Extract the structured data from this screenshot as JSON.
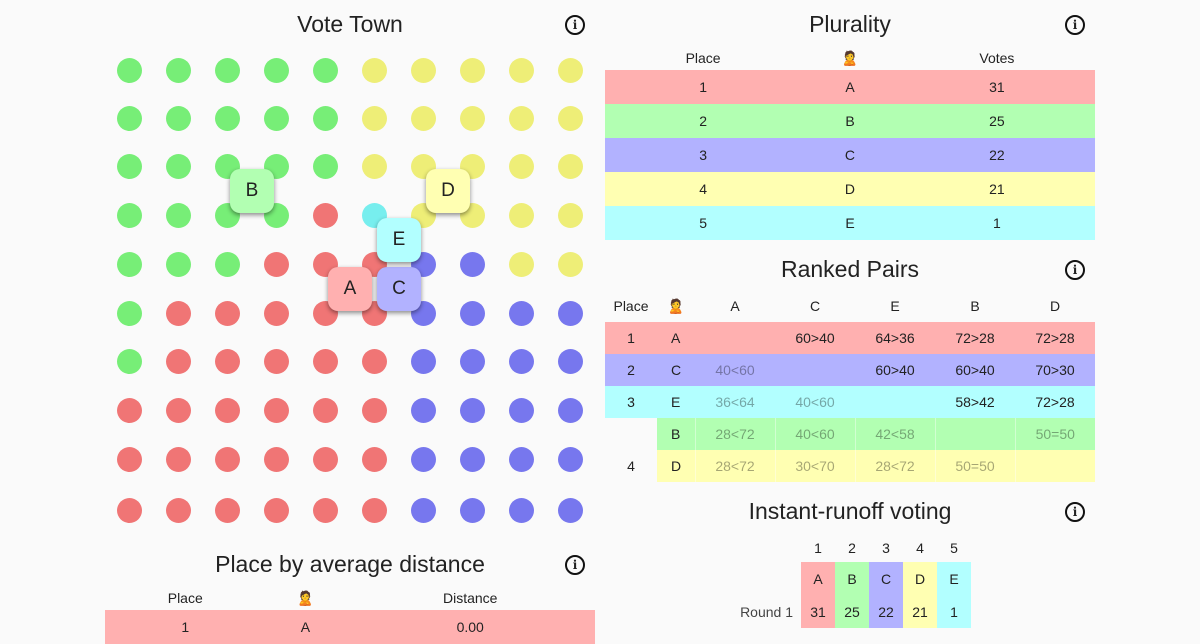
{
  "colors": {
    "A": "#f07575",
    "B": "#77ee77",
    "C": "#7777ee",
    "D": "#eeee77",
    "E": "#77eeee"
  },
  "light": {
    "A": "#ffb0b0",
    "B": "#b2ffb2",
    "C": "#b2b2ff",
    "D": "#ffffb2",
    "E": "#b2ffff"
  },
  "vote_town": {
    "title": "Vote Town",
    "info": "i",
    "voters": [
      "BBBBBDDDDD",
      "BBBBBDDDDD",
      "BBBBBDDDDD",
      "BBBBAEDDDD",
      "BBBAAACCDD",
      "BAAAAACCCC",
      "BAAAAACCCC",
      "AAAAAACCCC",
      "AAAAAACCCC",
      "AAAAAACCCC"
    ],
    "candidates": [
      "A",
      "B",
      "C",
      "D",
      "E"
    ]
  },
  "plurality": {
    "title": "Plurality",
    "info": "i",
    "headers": [
      "Place",
      "🙎",
      "Votes"
    ],
    "rows": [
      {
        "place": "1",
        "cand": "A",
        "votes": "31"
      },
      {
        "place": "2",
        "cand": "B",
        "votes": "25"
      },
      {
        "place": "3",
        "cand": "C",
        "votes": "22"
      },
      {
        "place": "4",
        "cand": "D",
        "votes": "21"
      },
      {
        "place": "5",
        "cand": "E",
        "votes": "1"
      }
    ]
  },
  "ranked_pairs": {
    "title": "Ranked Pairs",
    "info": "i",
    "headers": [
      "Place",
      "🙎",
      "A",
      "C",
      "E",
      "B",
      "D"
    ],
    "rows": [
      {
        "place": "1",
        "cand": "A",
        "cells": [
          "",
          "60>40",
          "64>36",
          "72>28",
          "72>28"
        ]
      },
      {
        "place": "2",
        "cand": "C",
        "cells": [
          "40<60",
          "",
          "60>40",
          "60>40",
          "70>30"
        ]
      },
      {
        "place": "3",
        "cand": "E",
        "cells": [
          "36<64",
          "40<60",
          "",
          "58>42",
          "72>28"
        ]
      },
      {
        "place": "",
        "cand": "B",
        "cells": [
          "28<72",
          "40<60",
          "42<58",
          "",
          "50=50"
        ]
      },
      {
        "place": "4",
        "cand": "D",
        "cells": [
          "28<72",
          "30<70",
          "28<72",
          "50=50",
          ""
        ]
      }
    ]
  },
  "irv": {
    "title": "Instant-runoff voting",
    "info": "i",
    "headers": [
      "1",
      "2",
      "3",
      "4",
      "5"
    ],
    "cands": [
      "A",
      "B",
      "C",
      "D",
      "E"
    ],
    "round_label": "Round 1",
    "votes": [
      "31",
      "25",
      "22",
      "21",
      "1"
    ]
  },
  "avg_distance": {
    "title": "Place by average distance",
    "info": "i",
    "headers": [
      "Place",
      "🙎",
      "Distance"
    ],
    "rows": [
      {
        "place": "1",
        "cand": "A",
        "dist": "0.00"
      }
    ]
  }
}
